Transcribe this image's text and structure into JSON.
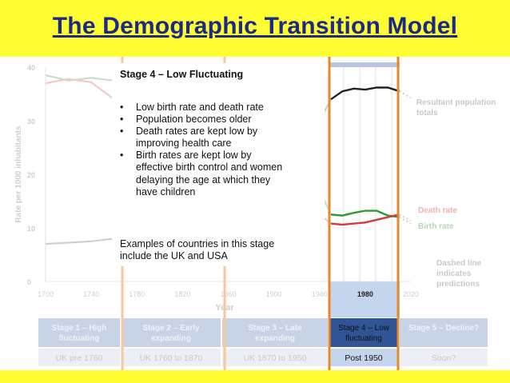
{
  "slide": {
    "title": "The Demographic Transition Model"
  },
  "info": {
    "heading": "Stage 4 – Low Fluctuating",
    "bullets": [
      "Low birth rate and death rate",
      "Population becomes older",
      "Death rates are kept low by\nimproving health care",
      "Birth rates are kept low by\neffective birth control and women\ndelaying the age at which they\nhave children"
    ],
    "bullet_glyph": "•",
    "examples": "Examples of countries in this stage\ninclude the UK and USA"
  },
  "chart_data": {
    "type": "line",
    "ylabel": "Rate per 1000 inhabitants",
    "xlabel": "Year",
    "x_ticks": [
      "1700",
      "1740",
      "1780",
      "1820",
      "1860",
      "1900",
      "1940",
      "1980",
      "2020"
    ],
    "y_ticks": [
      "0",
      "10",
      "20",
      "30",
      "40"
    ],
    "ylim": [
      0,
      40
    ],
    "xlim": [
      1700,
      2020
    ],
    "highlighted_period": "1980",
    "series_labels": {
      "population": "Resultant population\ntotals",
      "death": "Death rate",
      "birth": "Birth rate",
      "note": "Dashed line\nindicates\npredictions"
    },
    "series": [
      {
        "key": "birth",
        "color": "#2e9b2e",
        "x": [
          1700,
          1720,
          1740,
          1760,
          1780,
          1800,
          1820,
          1840,
          1860,
          1880,
          1900,
          1920,
          1940,
          1950,
          1960,
          1970,
          1980,
          1990,
          2000,
          2010
        ],
        "values": [
          38.5,
          37.5,
          38,
          37.5,
          37.8,
          37.2,
          37,
          36.5,
          36,
          34.5,
          30,
          24,
          17,
          12.5,
          12.3,
          12.8,
          13.2,
          13.2,
          12.3,
          12
        ]
      },
      {
        "key": "death",
        "color": "#d23c3c",
        "x": [
          1700,
          1720,
          1740,
          1760,
          1780,
          1800,
          1820,
          1840,
          1860,
          1880,
          1900,
          1920,
          1940,
          1950,
          1960,
          1970,
          1980,
          1990,
          2000,
          2010
        ],
        "values": [
          37,
          37.8,
          37.2,
          34,
          29,
          24,
          20.5,
          17.5,
          15.5,
          14.5,
          13.5,
          12.8,
          12.5,
          10.8,
          10.6,
          10.8,
          11,
          11.5,
          12,
          12.5
        ]
      },
      {
        "key": "population",
        "color": "#222222",
        "x": [
          1700,
          1740,
          1780,
          1820,
          1860,
          1880,
          1900,
          1920,
          1940,
          1950,
          1960,
          1970,
          1980,
          1990,
          2000,
          2010
        ],
        "values": [
          7,
          7.5,
          8.5,
          10,
          13,
          15,
          19,
          24,
          30,
          34,
          35.5,
          36,
          35.8,
          36.2,
          36.2,
          35.5
        ]
      }
    ]
  },
  "table": {
    "stages": [
      "Stage 1 – High\nfluctuating",
      "Stage 2 – Early\nexpanding",
      "Stage 3 – Late\nexpanding",
      "Stage 4 – Low\nfluctuating",
      "Stage 5 – Decline?"
    ],
    "examples": [
      "UK pre 1760",
      "UK 1760 to 1870",
      "UK  1870 to 1950",
      "Post 1950",
      "Soon?"
    ],
    "active_index": 3
  },
  "colors": {
    "title": "#1a2a86",
    "background": "#ffff33",
    "stage_divider": "#e58a2a",
    "stage4_fill": "#c6d5ee",
    "table_header": "#c8d4e6",
    "table_active_header": "#2f5597"
  }
}
